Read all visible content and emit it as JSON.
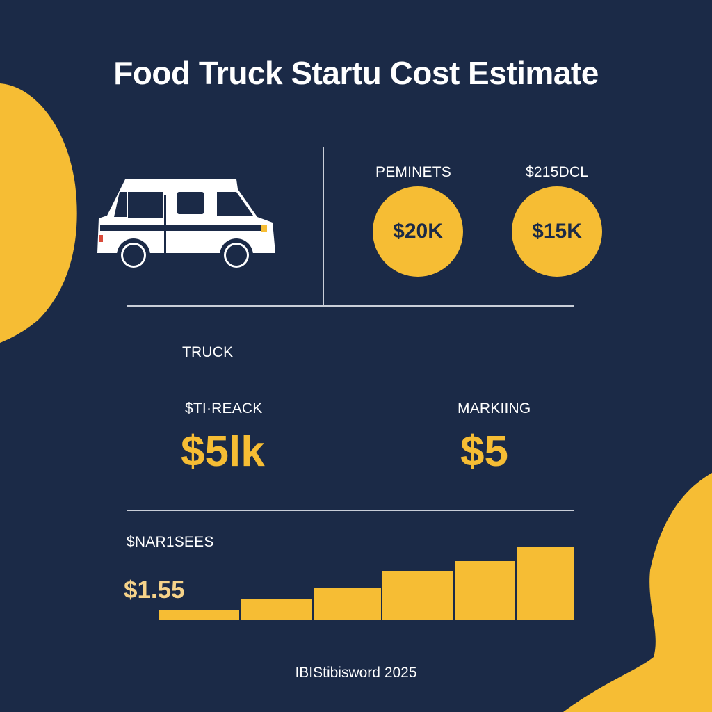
{
  "title": "Food Truck Startu Cost Estimate",
  "colors": {
    "background": "#1b2a47",
    "accent": "#f6bd34",
    "text": "#ffffff"
  },
  "icons": {
    "vehicle": "food-truck-icon"
  },
  "top_right": {
    "items": [
      {
        "label": "PEMINETS",
        "value": "$20K"
      },
      {
        "label": "$215DCL",
        "value": "$15K"
      }
    ]
  },
  "middle": {
    "section_label": "TRUCK",
    "left": {
      "label": "$TI·REACK",
      "value": "$5lk"
    },
    "right": {
      "label": "MARKIING",
      "value": "$5"
    }
  },
  "bottom": {
    "label": "$NAR1SEES",
    "value": "$1.55",
    "bars": [
      0.14,
      0.28,
      0.44,
      0.67,
      0.8,
      1.0
    ]
  },
  "footer": "IBIStibisword 2025"
}
